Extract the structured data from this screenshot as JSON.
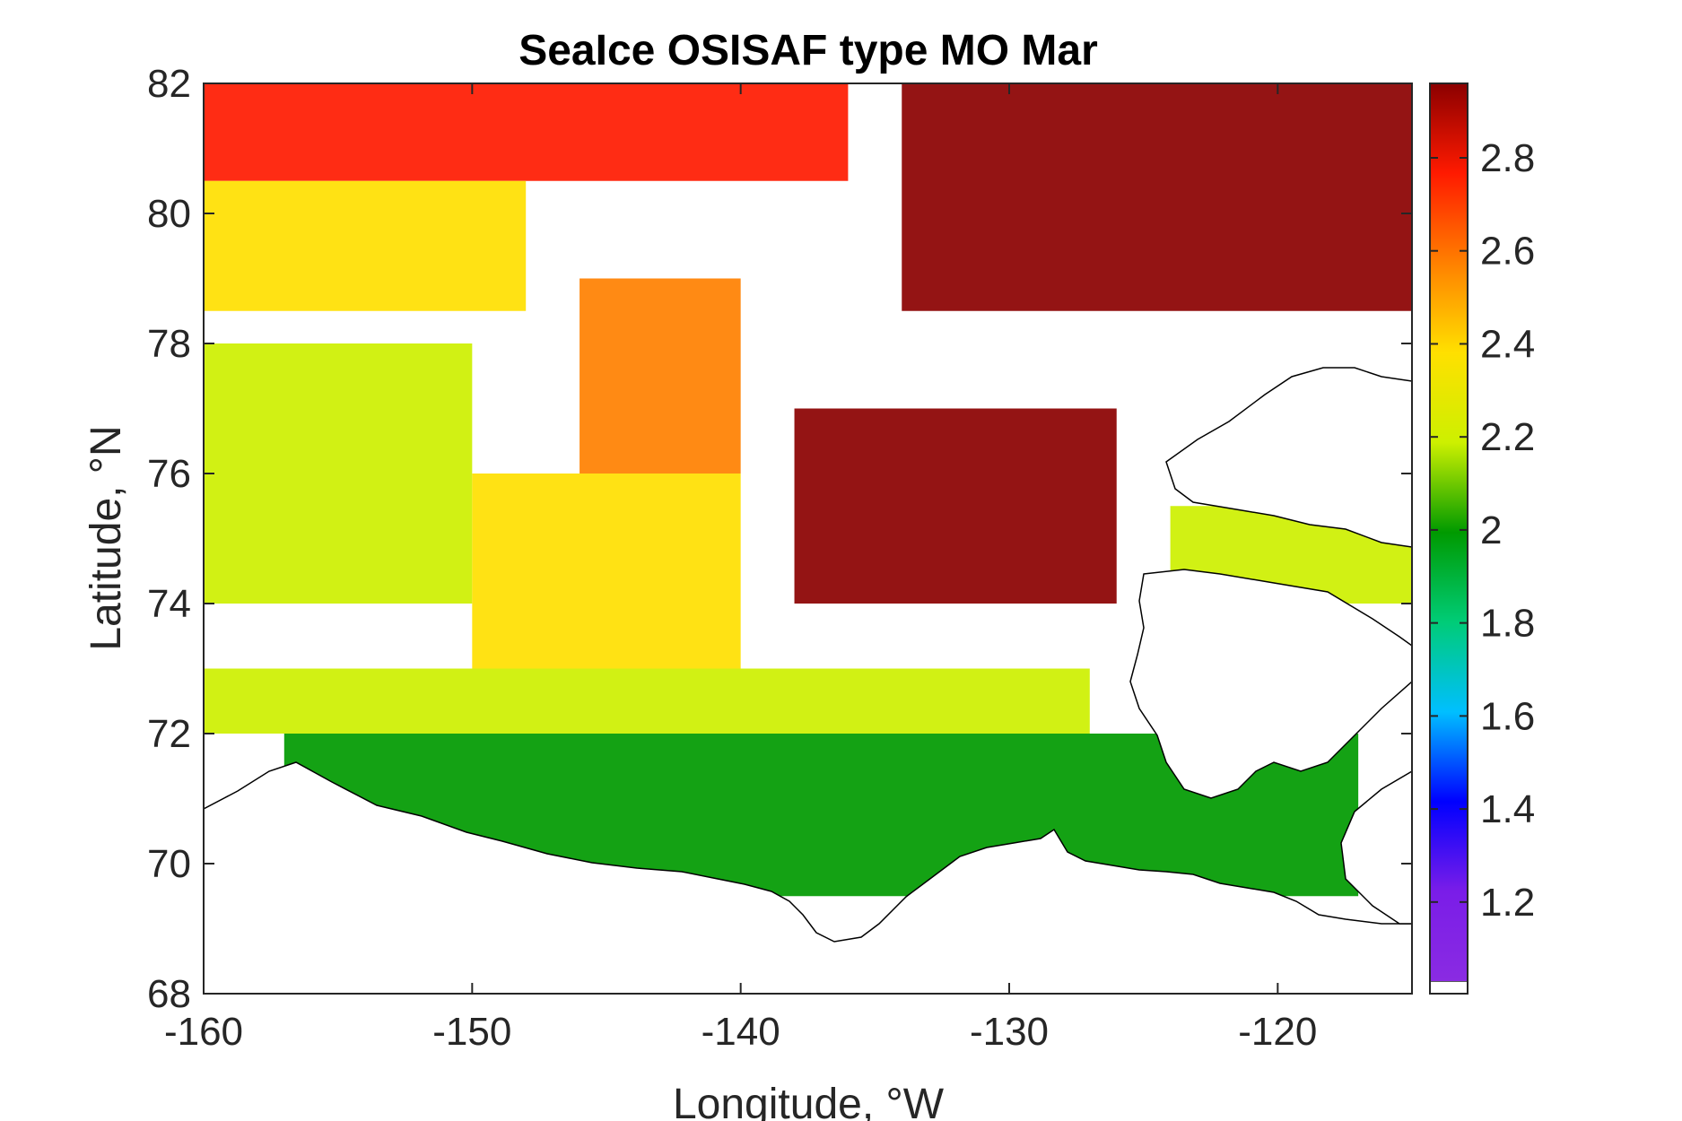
{
  "chart_data": {
    "type": "heatmap",
    "title": "SeaIce OSISAF type MO Mar",
    "xlabel": "Longitude, °W",
    "ylabel": "Latitude, °N",
    "xlim": [
      -160,
      -115
    ],
    "ylim": [
      68,
      82
    ],
    "xticks": [
      -160,
      -150,
      -140,
      -130,
      -120
    ],
    "yticks": [
      68,
      70,
      72,
      74,
      76,
      78,
      80,
      82
    ],
    "colorbar": {
      "range": [
        1.03,
        2.96
      ],
      "ticks": [
        1.2,
        1.4,
        1.6,
        1.8,
        2,
        2.2,
        2.4,
        2.6,
        2.8
      ],
      "colormap": [
        "#8a2be2",
        "#7a1de8",
        "#0000ff",
        "#00bfff",
        "#00cc77",
        "#009a00",
        "#cdf000",
        "#ffe000",
        "#ff8000",
        "#ff1a00",
        "#8b0000"
      ],
      "masked_color": "#ffffff"
    },
    "field_summary": [
      {
        "lon": [
          -160,
          -136
        ],
        "lat": [
          80.5,
          82
        ],
        "value": 2.7
      },
      {
        "lon": [
          -134,
          -115
        ],
        "lat": [
          78.5,
          82
        ],
        "value": 2.95
      },
      {
        "lon": [
          -160,
          -148
        ],
        "lat": [
          78.5,
          80.5
        ],
        "value": 2.45
      },
      {
        "lon": [
          -146,
          -140
        ],
        "lat": [
          76,
          79
        ],
        "value": 2.5
      },
      {
        "lon": [
          -160,
          -150
        ],
        "lat": [
          74,
          78
        ],
        "value": 2.15
      },
      {
        "lon": [
          -150,
          -140
        ],
        "lat": [
          73,
          76
        ],
        "value": 2.35
      },
      {
        "lon": [
          -138,
          -126
        ],
        "lat": [
          74,
          77
        ],
        "value": 2.9
      },
      {
        "lon": [
          -160,
          -127
        ],
        "lat": [
          72,
          73
        ],
        "value": 2.15
      },
      {
        "lon": [
          -157,
          -117
        ],
        "lat": [
          69.5,
          72
        ],
        "value": 2.0
      },
      {
        "lon": [
          -124,
          -115
        ],
        "lat": [
          74,
          75.5
        ],
        "value": 2.1
      }
    ]
  }
}
